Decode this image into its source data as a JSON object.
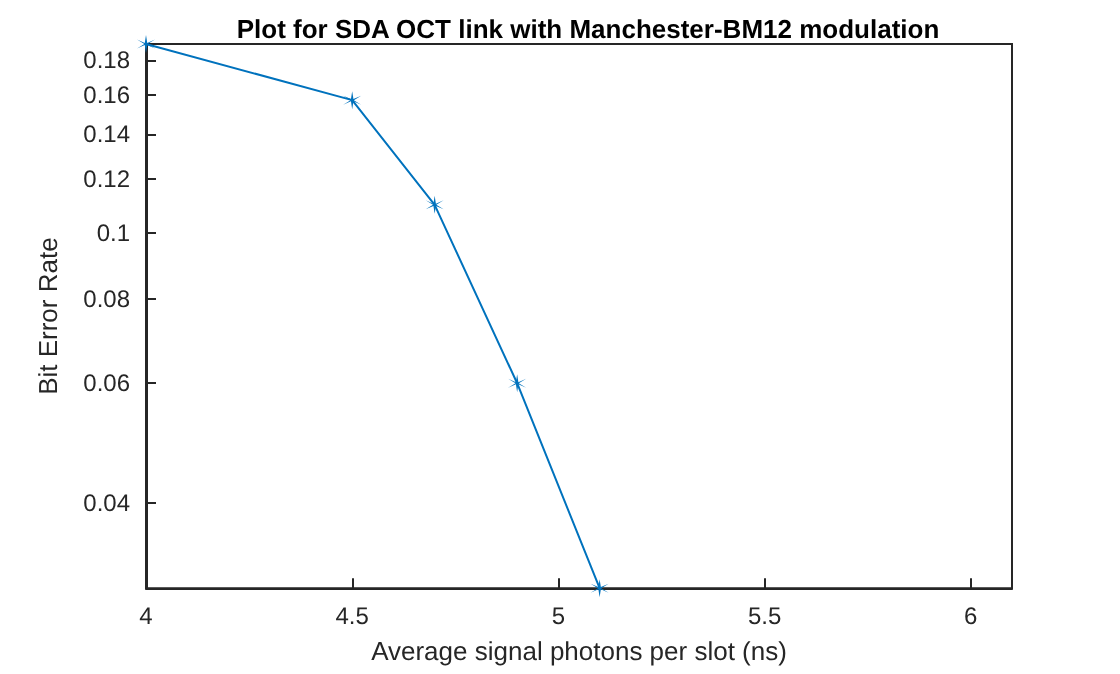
{
  "chart_data": {
    "type": "line",
    "title": "Plot for SDA OCT link with Manchester-BM12 modulation",
    "xlabel": "Average signal photons per slot (ns)",
    "ylabel": "Bit Error Rate",
    "x": [
      4,
      4.5,
      4.7,
      4.9,
      5.1
    ],
    "series": [
      {
        "color": "#0072bd",
        "values": [
          0.19,
          0.157,
          0.11,
          0.06,
          0.0299
        ]
      }
    ],
    "xlim": [
      4,
      6.1
    ],
    "xticks": [
      4,
      4.5,
      5,
      5.5,
      6
    ],
    "ylim": [
      0.0299,
      0.19
    ],
    "yticks": [
      0.04,
      0.06,
      0.08,
      0.1,
      0.12,
      0.14,
      0.16,
      0.18
    ],
    "log": "y",
    "grid": false,
    "marker": "cross",
    "line_style": "solid"
  }
}
